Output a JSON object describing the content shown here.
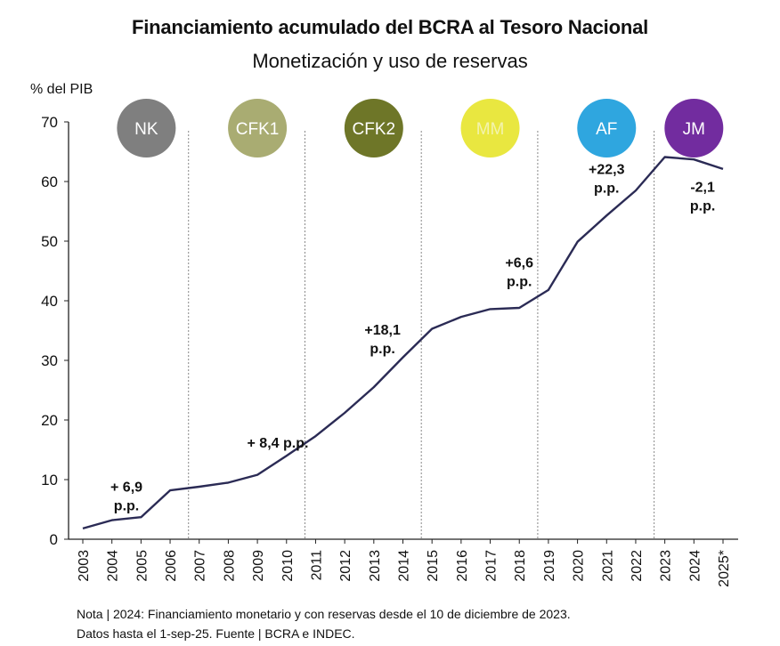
{
  "title": "Financiamiento acumulado del BCRA al Tesoro Nacional",
  "subtitle": "Monetización y uso de reservas",
  "note_line1": "Nota | 2024: Financiamiento monetario y con reservas desde el 10 de diciembre de 2023.",
  "note_line2": "Datos hasta el 1-sep-25. Fuente | BCRA e INDEC.",
  "chart_data": {
    "type": "line",
    "ylabel": "% del PIB",
    "ylim": [
      0,
      70
    ],
    "yticks": [
      "0",
      "10",
      "20",
      "30",
      "40",
      "50",
      "60",
      "70"
    ],
    "x": [
      "2003",
      "2004",
      "2005",
      "2006",
      "2007",
      "2008",
      "2009",
      "2010",
      "2011",
      "2012",
      "2013",
      "2014",
      "2015",
      "2016",
      "2017",
      "2018",
      "2019",
      "2020",
      "2021",
      "2022",
      "2023",
      "2024",
      "2025*"
    ],
    "series": [
      {
        "values": [
          1.8,
          3.2,
          3.7,
          8.2,
          8.8,
          9.5,
          10.8,
          14.0,
          17.3,
          21.2,
          25.5,
          30.5,
          35.3,
          37.3,
          38.6,
          38.8,
          41.8,
          49.9,
          54.3,
          58.5,
          64.1,
          63.7,
          62.1
        ],
        "color": "#2b2b55"
      }
    ],
    "periods": [
      {
        "label": "NK",
        "color": "#7f7f7f",
        "text_color": "#ffffff",
        "start": "2003",
        "end": "2007"
      },
      {
        "label": "CFK1",
        "color": "#a9ac72",
        "text_color": "#ffffff",
        "start": "2007",
        "end": "2011"
      },
      {
        "label": "CFK2",
        "color": "#6e7628",
        "text_color": "#ffffff",
        "start": "2011",
        "end": "2015"
      },
      {
        "label": "MM",
        "color": "#e9e740",
        "text_color": "#f3f3ae",
        "start": "2015",
        "end": "2019"
      },
      {
        "label": "AF",
        "color": "#2fa6df",
        "text_color": "#ffffff",
        "start": "2019",
        "end": "2023"
      },
      {
        "label": "JM",
        "color": "#722c9f",
        "text_color": "#ffffff",
        "start": "2023",
        "end": "2025*"
      }
    ],
    "annotations": [
      {
        "lines": [
          "+ 6,9",
          "p.p."
        ],
        "x": "2004.5",
        "y": 8.0
      },
      {
        "lines": [
          "+ 8,4 p.p."
        ],
        "x": "2009.7",
        "y": 15.4
      },
      {
        "lines": [
          "+18,1",
          "p.p."
        ],
        "x": "2013.3",
        "y": 34.3
      },
      {
        "lines": [
          "+6,6",
          "p.p."
        ],
        "x": "2018.0",
        "y": 45.6
      },
      {
        "lines": [
          "+22,3",
          "p.p."
        ],
        "x": "2021.0",
        "y": 61.3
      },
      {
        "lines": [
          "-2,1",
          "p.p."
        ],
        "x": "2024.3",
        "y": 58.3
      }
    ],
    "grid": false
  }
}
